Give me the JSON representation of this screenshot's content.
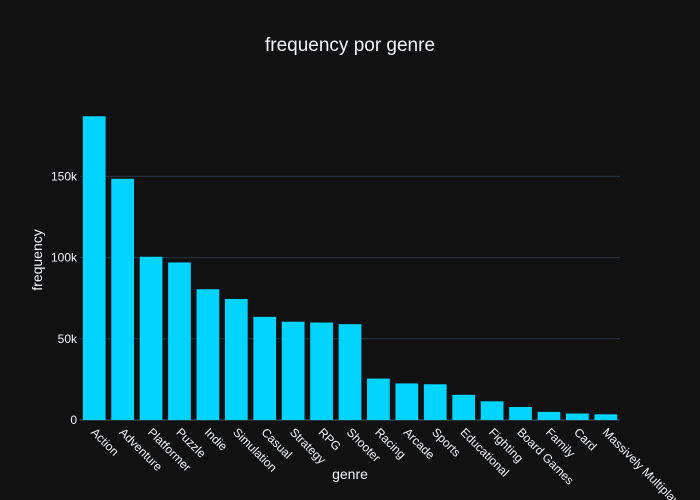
{
  "chart_data": {
    "type": "bar",
    "title": "frequency por genre",
    "xlabel": "genre",
    "ylabel": "frequency",
    "categories": [
      "Action",
      "Adventure",
      "Platformer",
      "Puzzle",
      "Indie",
      "Simulation",
      "Casual",
      "Strategy",
      "RPG",
      "Shooter",
      "Racing",
      "Arcade",
      "Sports",
      "Educational",
      "Fighting",
      "Board Games",
      "Family",
      "Card",
      "Massively Multiplayer"
    ],
    "values": [
      187000,
      148500,
      100500,
      97000,
      80500,
      74500,
      63500,
      60500,
      60000,
      59000,
      25500,
      22500,
      22000,
      15500,
      11500,
      8000,
      5000,
      4000,
      3500
    ],
    "ylim": [
      0,
      197000
    ],
    "yticks": [
      0,
      50000,
      100000,
      150000
    ],
    "yticklabels": [
      "0",
      "50k",
      "100k",
      "150k"
    ],
    "grid": true,
    "bar_color": "#00d4ff",
    "background": "#111111",
    "text_color": "#f2f5fa",
    "grid_color": "#283442"
  }
}
